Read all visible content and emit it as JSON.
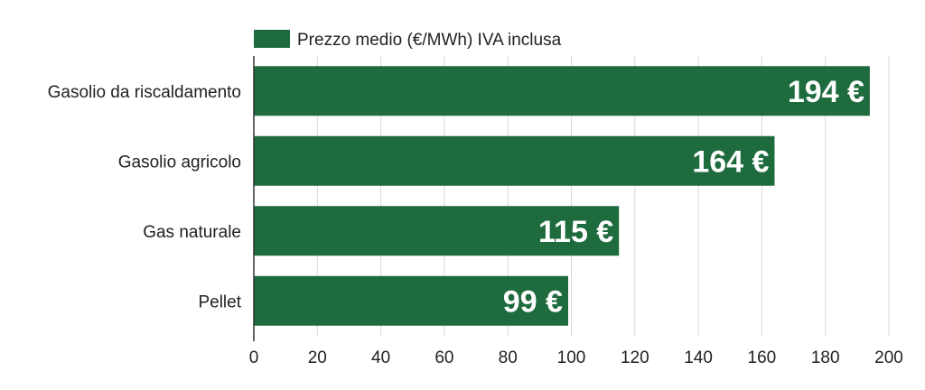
{
  "chart_data": {
    "type": "bar",
    "orientation": "horizontal",
    "categories": [
      "Gasolio da riscaldamento",
      "Gasolio agricolo",
      "Gas naturale",
      "Pellet"
    ],
    "series": [
      {
        "name": "Prezzo medio (€/MWh) IVA inclusa",
        "values": [
          194,
          164,
          115,
          99
        ],
        "data_labels": [
          "194 €",
          "164 €",
          "115 €",
          "99 €"
        ]
      }
    ],
    "xlim": [
      0,
      200
    ],
    "xticks": [
      0,
      20,
      40,
      60,
      80,
      100,
      120,
      140,
      160,
      180,
      200
    ],
    "grid": "vertical",
    "legend_position": "top-left",
    "colors": {
      "bar": "#1e6b3e",
      "grid": "#d9d9d9",
      "axis": "#333333"
    }
  }
}
